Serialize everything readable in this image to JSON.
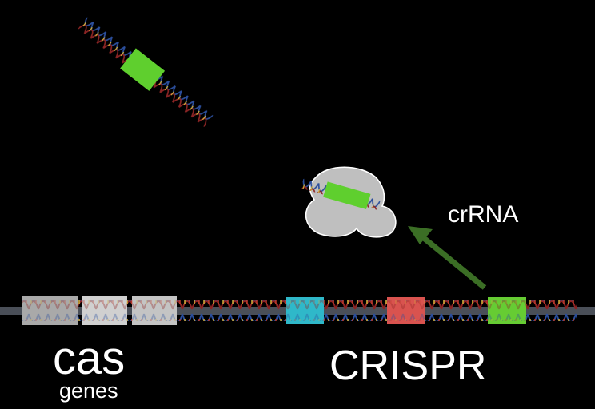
{
  "labels": {
    "cas": "cas",
    "genes": "genes",
    "crispr": "CRISPR",
    "crrna": "crRNA"
  },
  "colors": {
    "background": "#000000",
    "cas_gene": "#bdbdbd",
    "spacer_cyan": "#2fb8c9",
    "spacer_red": "#d9534f",
    "spacer_green": "#66cc33",
    "arrow": "#3b6e25",
    "cas_protein": "#bfbfbf"
  }
}
